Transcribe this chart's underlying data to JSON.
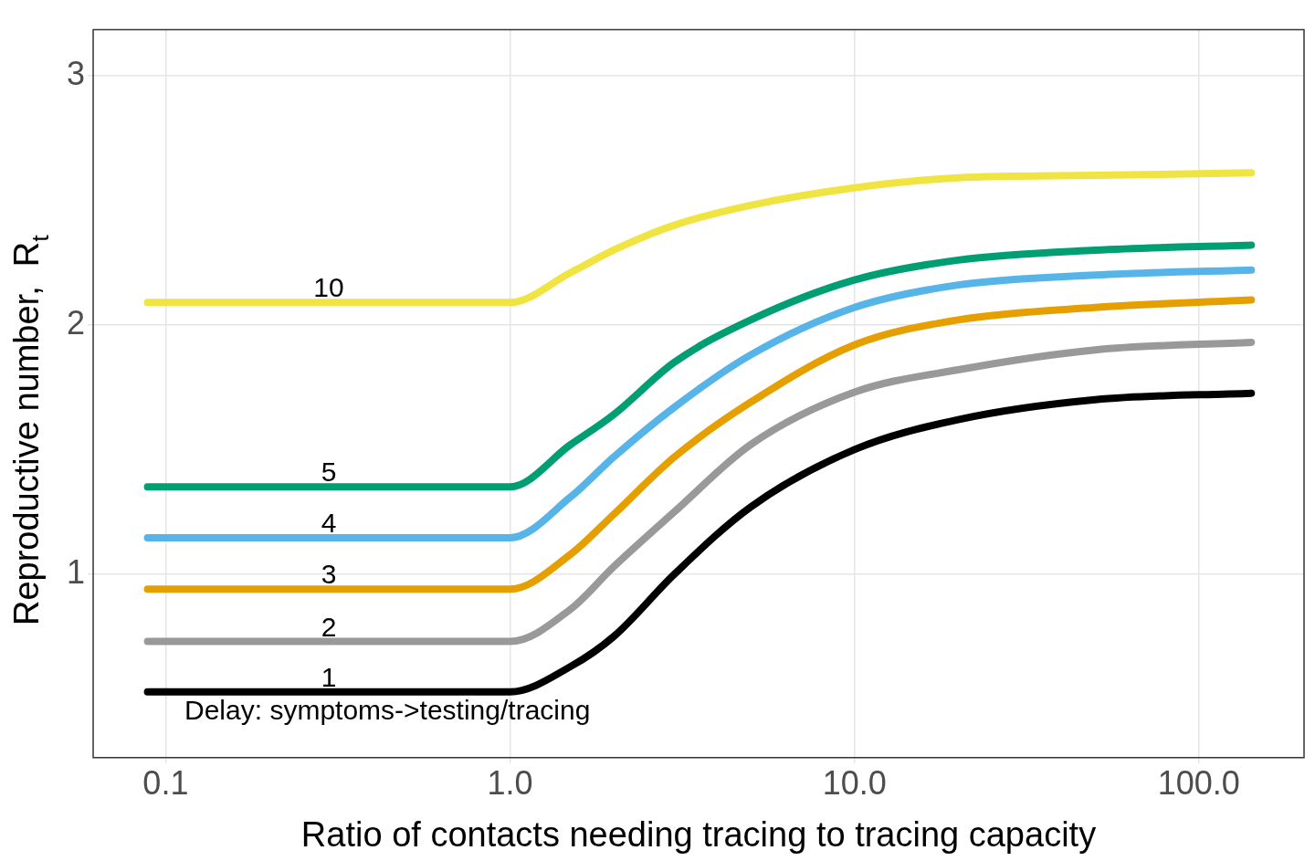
{
  "chart_data": {
    "type": "line",
    "xlabel": "Ratio of contacts needing tracing to tracing capacity",
    "ylabel": "Reproductive number,  R$_{t}$",
    "log": "x",
    "grid": true,
    "legend": false,
    "marker": "none",
    "line_style": "solid",
    "x": [
      0.0886,
      1,
      1.5,
      2,
      3,
      5,
      10,
      20,
      50,
      142
    ],
    "xlim": [
      0.0616,
      202
    ],
    "xticks": [
      0.1,
      {
        "value": 1,
        "label": "1.0"
      },
      {
        "value": 10,
        "label": "10.0"
      },
      {
        "value": 100,
        "label": "100.0"
      }
    ],
    "ylim": [
      0.264,
      3.184
    ],
    "yticks": [
      1,
      2,
      3
    ],
    "series": [
      {
        "name": "10",
        "color": "#f0e442",
        "values": [
          2.09,
          2.09,
          2.21,
          2.3,
          2.4,
          2.48,
          2.55,
          2.59,
          2.6,
          2.61
        ]
      },
      {
        "name": "5",
        "color": "#009e73",
        "values": [
          1.35,
          1.35,
          1.52,
          1.64,
          1.85,
          2.02,
          2.18,
          2.26,
          2.3,
          2.32
        ]
      },
      {
        "name": "4",
        "color": "#56b4e9",
        "values": [
          1.146,
          1.146,
          1.31,
          1.47,
          1.67,
          1.88,
          2.07,
          2.16,
          2.2,
          2.22
        ]
      },
      {
        "name": "3",
        "color": "#e69f00",
        "values": [
          0.94,
          0.94,
          1.08,
          1.24,
          1.47,
          1.69,
          1.92,
          2.02,
          2.07,
          2.1
        ]
      },
      {
        "name": "2",
        "color": "#999999",
        "values": [
          0.73,
          0.73,
          0.86,
          1.03,
          1.25,
          1.52,
          1.73,
          1.82,
          1.9,
          1.93
        ]
      },
      {
        "name": "1",
        "color": "#000000",
        "values": [
          0.528,
          0.528,
          0.63,
          0.75,
          1.0,
          1.27,
          1.5,
          1.62,
          1.7,
          1.726
        ]
      }
    ],
    "annotations": [
      "Delay: symptoms->testing/tracing"
    ]
  }
}
